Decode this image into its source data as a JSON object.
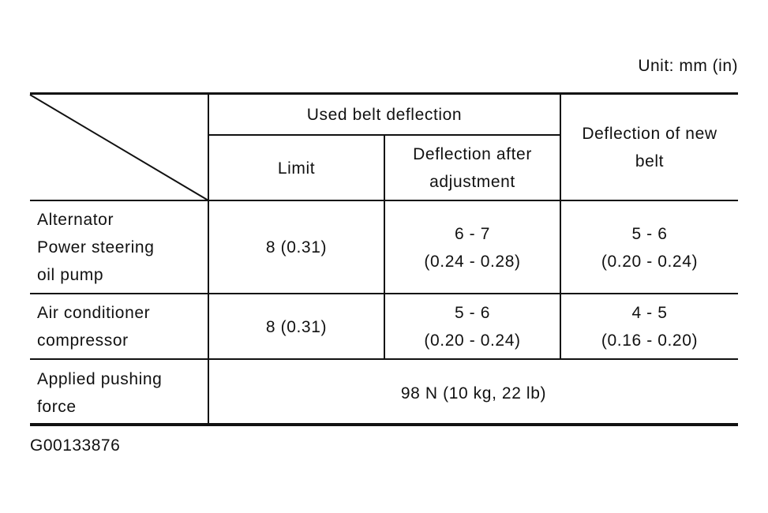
{
  "unit_note": "Unit: mm (in)",
  "table": {
    "headers": {
      "used_belt_deflection": "Used belt deflection",
      "limit": "Limit",
      "deflection_after_adjustment": "Deflection after\nadjustment",
      "deflection_of_new_belt": "Deflection of new\nbelt"
    },
    "rows": [
      {
        "label": "Alternator\nPower steering\noil pump",
        "limit": "8 (0.31)",
        "after_adjustment": "6 - 7\n(0.24 - 0.28)",
        "new_belt": "5 - 6\n(0.20 - 0.24)"
      },
      {
        "label": "Air conditioner\ncompressor",
        "limit": "8 (0.31)",
        "after_adjustment": "5 - 6\n(0.20 - 0.24)",
        "new_belt": "4 - 5\n(0.16 - 0.20)"
      }
    ],
    "pushing_force": {
      "label": "Applied pushing\nforce",
      "value": "98 N (10 kg, 22 lb)"
    }
  },
  "figure_id": "G00133876"
}
